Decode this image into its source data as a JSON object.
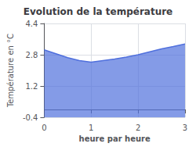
{
  "chart_data": {
    "type": "area",
    "title": "Evolution de la température",
    "xlabel": "heure par heure",
    "ylabel": "Température en °C",
    "x": [
      0,
      0.25,
      0.5,
      0.75,
      1.0,
      1.25,
      1.5,
      1.75,
      2.0,
      2.25,
      2.5,
      2.75,
      3.0
    ],
    "values": [
      3.05,
      2.85,
      2.65,
      2.5,
      2.42,
      2.5,
      2.58,
      2.68,
      2.8,
      2.95,
      3.1,
      3.22,
      3.35
    ],
    "xlim": [
      0,
      3
    ],
    "xticks": [
      0,
      1,
      2,
      3
    ],
    "ylim": [
      -0.4,
      4.4
    ],
    "yticks": [
      -0.4,
      1.2,
      2.8,
      4.4
    ],
    "grid": true
  }
}
